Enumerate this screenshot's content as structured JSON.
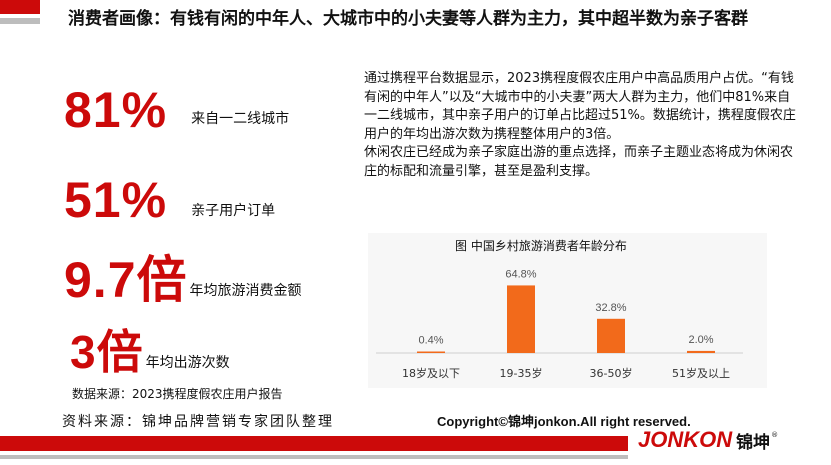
{
  "title": "消费者画像：有钱有闲的中年人、大城市中的小夫妻等人群为主力，其中超半数为亲子客群",
  "stats": [
    {
      "value": "81%",
      "label": "来自一二线城市"
    },
    {
      "value": "51%",
      "label": "亲子用户订单"
    },
    {
      "value": "9.7倍",
      "label": "年均旅游消费金额"
    },
    {
      "value": "3倍",
      "label": "年均出游次数"
    }
  ],
  "data_source": "数据来源：2023携程度假农庄用户报告",
  "paragraph": {
    "p1": "通过携程平台数据显示，2023携程度假农庄用户中高品质用户占优。“有钱有闲的中年人”以及“大城市中的小夫妻”两大人群为主力，他们中81%来自一二线城市，其中亲子用户的订单占比超过51%。数据统计，携程度假农庄用户的年均出游次数为携程整体用户的3倍。",
    "p2": "休闲农庄已经成为亲子家庭出游的重点选择，而亲子主题业态将成为休闲农庄的标配和流量引擎，甚至是盈利支撑。"
  },
  "chart_data": {
    "type": "bar",
    "title": "图 中国乡村旅游消费者年龄分布",
    "categories": [
      "18岁及以下",
      "19-35岁",
      "36-50岁",
      "51岁及以上"
    ],
    "values": [
      0.4,
      64.8,
      32.8,
      2.0
    ],
    "value_labels": [
      "0.4%",
      "64.8%",
      "32.8%",
      "2.0%"
    ],
    "unit": "%",
    "ylim": [
      0,
      70
    ],
    "grid": false,
    "legend": "none",
    "bar_color": "#f26a1b"
  },
  "footer": {
    "source": "资料来源：锦坤品牌营销专家团队整理",
    "copyright": "Copyright©锦坤jonkon.All right reserved."
  },
  "logo": {
    "text": "JONKON",
    "cn": "锦坤",
    "reg": "®"
  },
  "colors": {
    "accent": "#cc0a0a",
    "grey": "#bdbdbd",
    "bar": "#f26a1b"
  }
}
